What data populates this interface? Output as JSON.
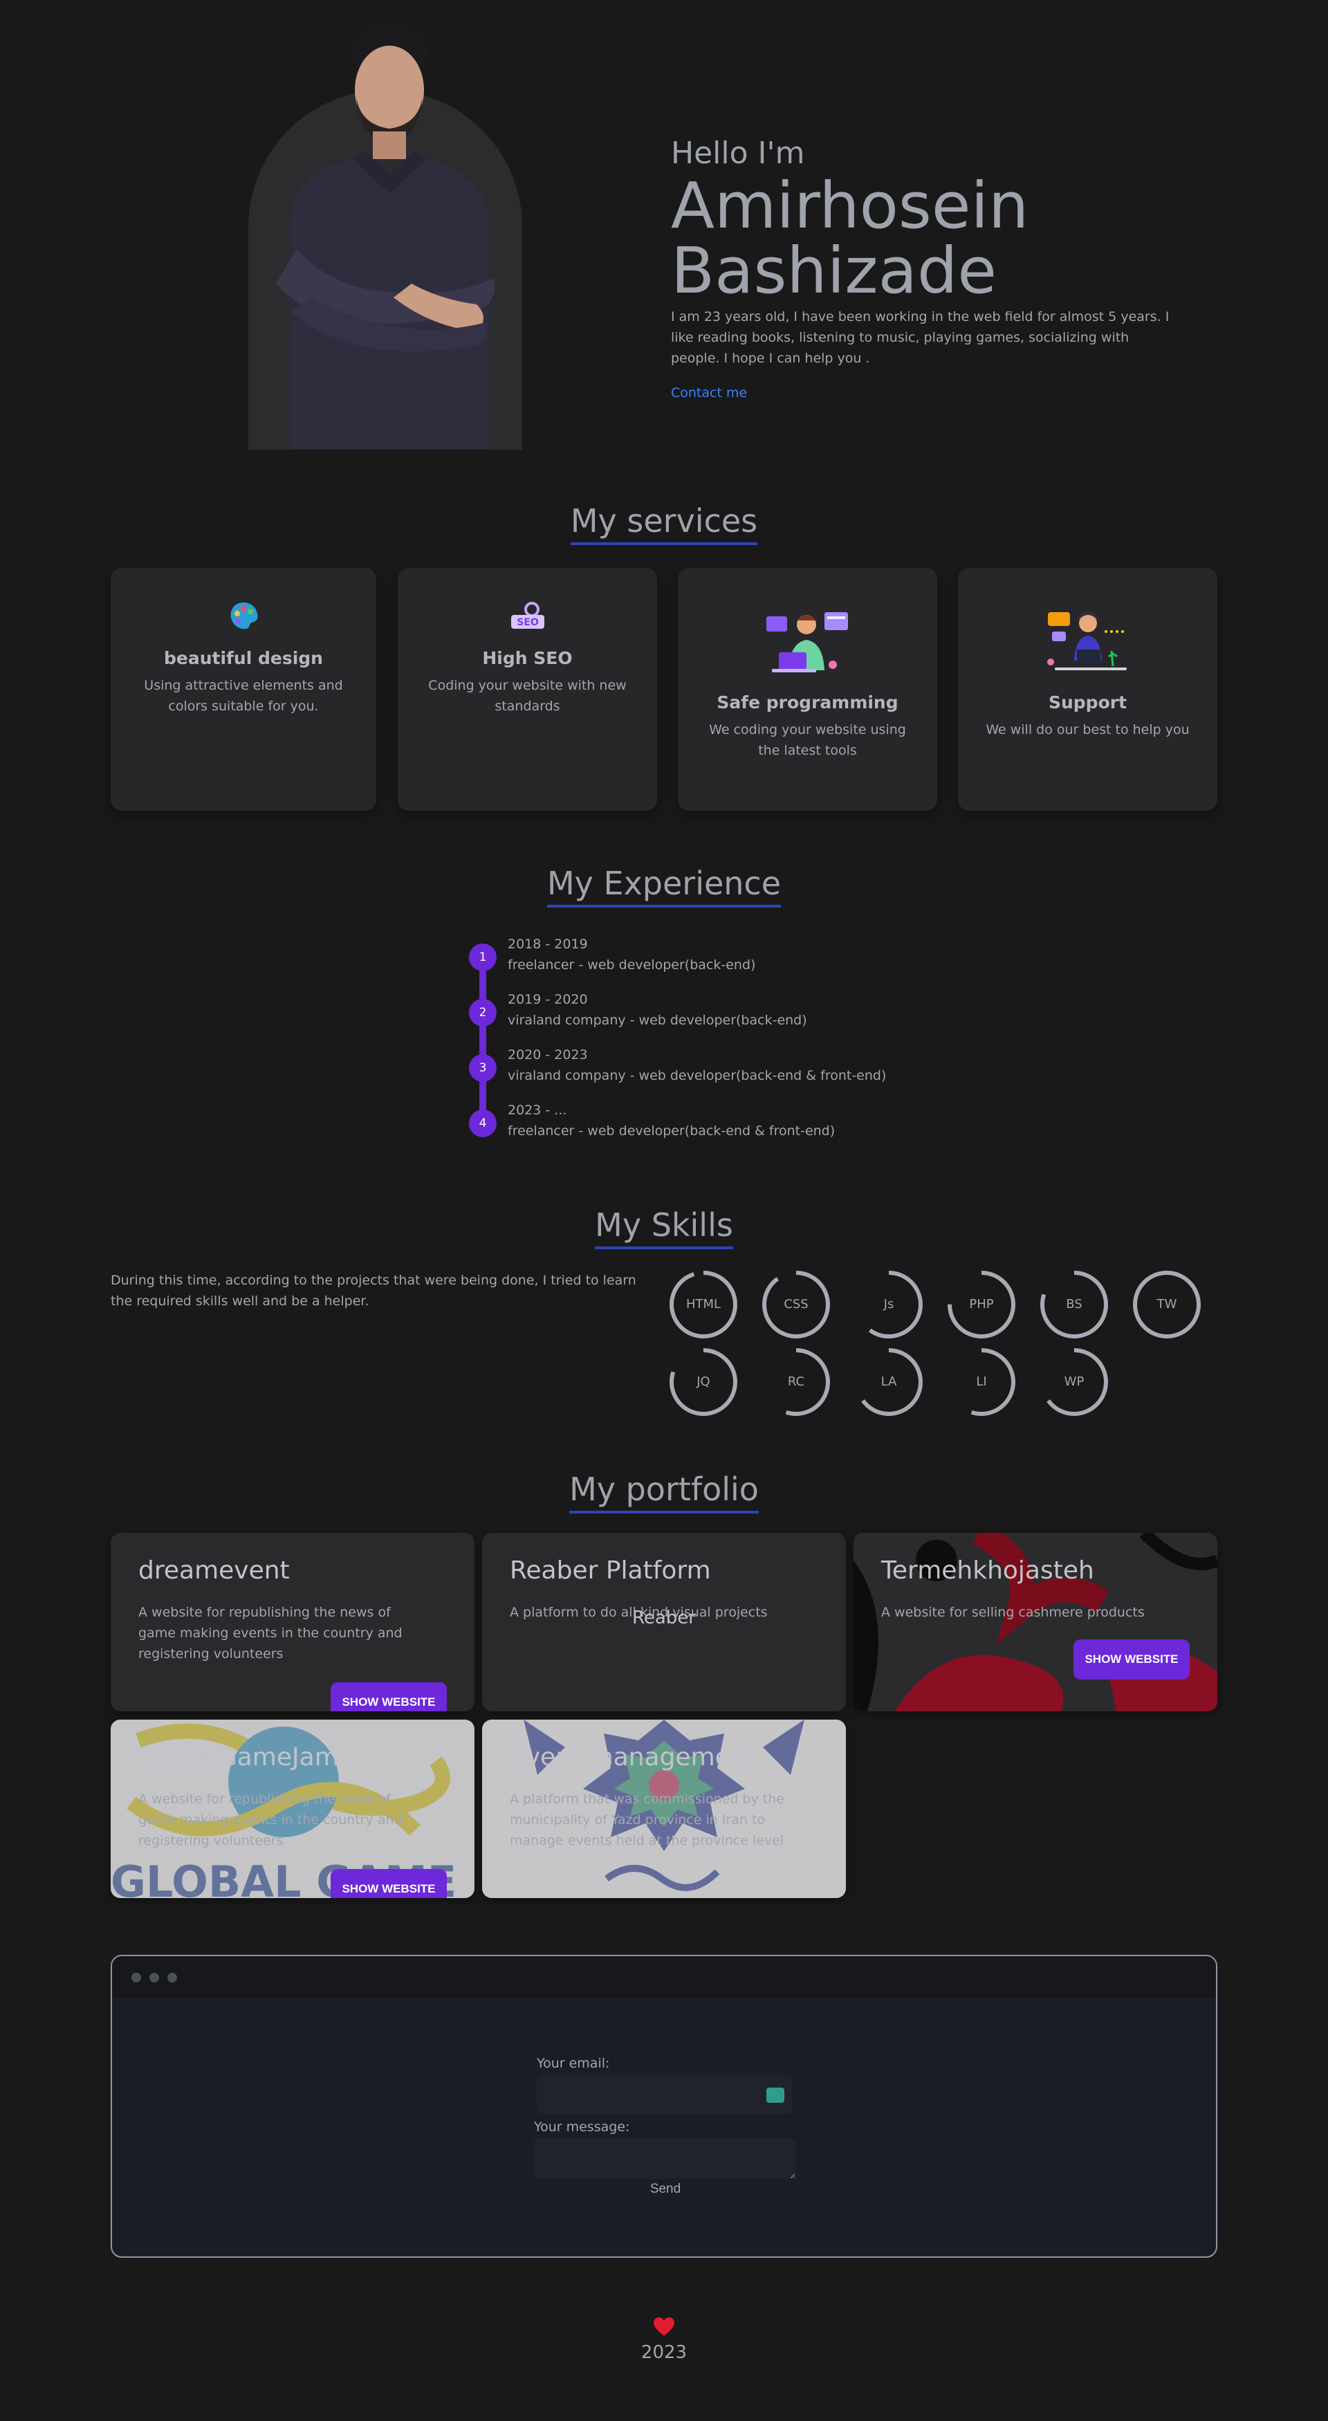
{
  "hero": {
    "greeting": "Hello I'm",
    "name": "Amirhosein Bashizade",
    "bio": "I am 23 years old, I have been working in the web field for almost 5 years. I like reading books, listening to music, playing games, socializing with people. I hope I can help you .",
    "contact_label": "Contact me"
  },
  "services": {
    "title": "My services",
    "items": [
      {
        "title": "beautiful design",
        "desc": "Using attractive elements and colors suitable for you.",
        "icon": "palette-icon"
      },
      {
        "title": "High SEO",
        "desc": "Coding your website with new standards",
        "icon": "seo-icon"
      },
      {
        "title": "Safe programming",
        "desc": "We coding your website using the latest tools",
        "icon": "programmer-illustration-icon"
      },
      {
        "title": "Support",
        "desc": "We will do our best to help you",
        "icon": "support-illustration-icon"
      }
    ]
  },
  "experience": {
    "title": "My Experience",
    "items": [
      {
        "num": "1",
        "period": "2018 - 2019",
        "role": "freelancer - web developer(back-end)"
      },
      {
        "num": "2",
        "period": "2019 - 2020",
        "role": "viraland company - web developer(back-end)"
      },
      {
        "num": "3",
        "period": "2020 - 2023",
        "role": "viraland company - web developer(back-end & front-end)"
      },
      {
        "num": "4",
        "period": "2023 - ...",
        "role": "freelancer - web developer(back-end & front-end)"
      }
    ]
  },
  "skills": {
    "title": "My Skills",
    "description": "During this time, according to the projects that were being done, I tried to learn the required skills well and be a helper.",
    "items": [
      {
        "label": "HTML",
        "level": 0.95
      },
      {
        "label": "CSS",
        "level": 0.9
      },
      {
        "label": "Js",
        "level": 0.6
      },
      {
        "label": "PHP",
        "level": 0.75
      },
      {
        "label": "BS",
        "level": 0.8
      },
      {
        "label": "TW",
        "level": 1.0
      },
      {
        "label": "JQ",
        "level": 0.8
      },
      {
        "label": "RC",
        "level": 0.55
      },
      {
        "label": "LA",
        "level": 0.65
      },
      {
        "label": "LI",
        "level": 0.55
      },
      {
        "label": "WP",
        "level": 0.65
      }
    ]
  },
  "portfolio": {
    "title": "My portfolio",
    "button_label": "SHOW WEBSITE",
    "items": [
      {
        "title": "dreamevent",
        "desc": "A website for republishing the news of game making events in the country and registering volunteers"
      },
      {
        "title": "Reaber Platform",
        "desc": "A platform to do all kind visual projects",
        "img_alt": "Reaber"
      },
      {
        "title": "Termehkhojasteh",
        "desc": "A website for selling cashmere products"
      },
      {
        "title": "GlobalGameJam",
        "desc": "A website for republishing the news of game making events in the country and registering volunteers"
      },
      {
        "title": "Event management",
        "desc": "A platform that was commissioned by the municipality of Yazd province in Iran to manage events held at the province level"
      }
    ]
  },
  "contact": {
    "email_label": "Your email:",
    "message_label": "Your message:",
    "send_label": "Send"
  },
  "footer": {
    "year": "2023"
  }
}
